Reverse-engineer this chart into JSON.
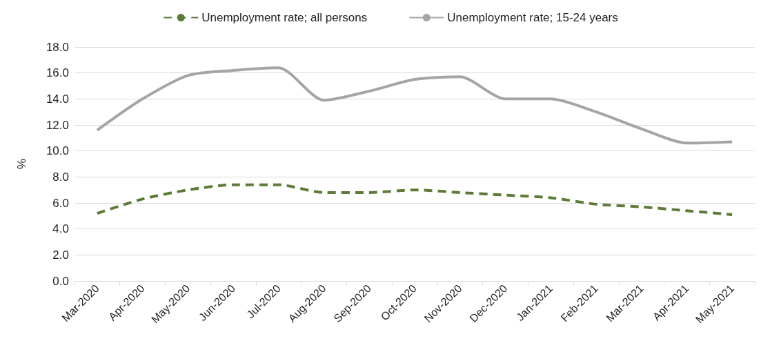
{
  "chart_data": {
    "type": "line",
    "ylabel": "%",
    "categories": [
      "Mar-2020",
      "Apr-2020",
      "May-2020",
      "Jun-2020",
      "Jul-2020",
      "Aug-2020",
      "Sep-2020",
      "Oct-2020",
      "Nov-2020",
      "Dec-2020",
      "Jan-2021",
      "Feb-2021",
      "Mar-2021",
      "Apr-2021",
      "May-2021"
    ],
    "series": [
      {
        "name": "Unemployment rate; all persons",
        "color": "#5b7b36",
        "line_style": "dashed",
        "values": [
          5.2,
          6.3,
          7.0,
          7.4,
          7.4,
          6.8,
          6.8,
          7.0,
          6.8,
          6.6,
          6.4,
          5.9,
          5.7,
          5.4,
          5.1
        ]
      },
      {
        "name": "Unemployment rate; 15-24 years",
        "color": "#a5a5a5",
        "line_style": "solid",
        "values": [
          11.6,
          14.0,
          15.8,
          16.2,
          16.4,
          13.9,
          14.6,
          15.5,
          15.7,
          14.0,
          14.0,
          13.0,
          11.7,
          10.6,
          10.7
        ]
      }
    ],
    "ylim": [
      0,
      18
    ],
    "yticks": [
      {
        "value": 0,
        "label": "0.0"
      },
      {
        "value": 2,
        "label": "2.0"
      },
      {
        "value": 4,
        "label": "4.0"
      },
      {
        "value": 6,
        "label": "6.0"
      },
      {
        "value": 8,
        "label": "8.0"
      },
      {
        "value": 10,
        "label": "10.0"
      },
      {
        "value": 12,
        "label": "12.0"
      },
      {
        "value": 14,
        "label": "14.0"
      },
      {
        "value": 16,
        "label": "16.0"
      },
      {
        "value": 18,
        "label": "18.0"
      }
    ],
    "grid": "y",
    "legend": "top",
    "marker": "none"
  }
}
